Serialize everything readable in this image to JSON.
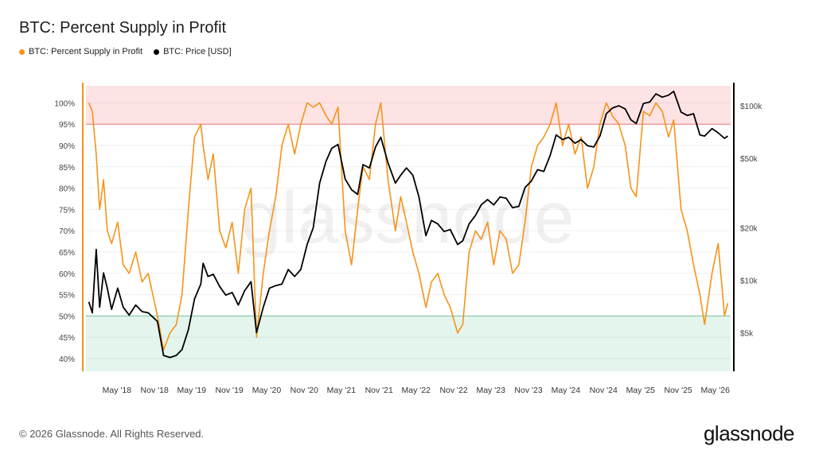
{
  "title": "BTC: Percent Supply in Profit",
  "legend": {
    "items": [
      {
        "label": "BTC: Percent Supply in Profit",
        "color": "#f7931a"
      },
      {
        "label": "BTC: Price [USD]",
        "color": "#000000"
      }
    ]
  },
  "watermark": "glassnode",
  "footer": {
    "copyright": "© 2026 Glassnode. All Rights Reserved.",
    "brand": "glassnode"
  },
  "colors": {
    "profit_series": "#f7931a",
    "price_series": "#000000",
    "upper_band": "#fde3e3",
    "upper_band_line": "#f08080",
    "lower_band": "#e3f5ec",
    "lower_band_line": "#7fcfa6"
  },
  "chart_data": {
    "type": "line",
    "x_ticks": [
      "May '18",
      "Nov '18",
      "May '19",
      "Nov '19",
      "May '20",
      "Nov '20",
      "May '21",
      "Nov '21",
      "May '22",
      "Nov '22",
      "May '23",
      "Nov '23",
      "May '24",
      "Nov '24",
      "May '25",
      "Nov '25",
      "May '26"
    ],
    "x_range": [
      "2017-12-01",
      "2026-07-15"
    ],
    "y_left": {
      "label": "",
      "range": [
        37,
        104
      ],
      "ticks": [
        "40%",
        "45%",
        "50%",
        "55%",
        "60%",
        "65%",
        "70%",
        "75%",
        "80%",
        "85%",
        "90%",
        "95%",
        "100%"
      ]
    },
    "y_right": {
      "label": "",
      "scale": "log",
      "range": [
        3000,
        130000
      ],
      "ticks": [
        "$5k",
        "$10k",
        "$20k",
        "$50k",
        "$100k"
      ]
    },
    "bands": [
      {
        "from": 95,
        "to": 104,
        "color": "#fde3e3"
      },
      {
        "from": 37,
        "to": 50,
        "color": "#e3f5ec"
      }
    ],
    "series": [
      {
        "name": "BTC: Percent Supply in Profit",
        "axis": "left",
        "color": "#f7931a",
        "x": [
          "2017-12-15",
          "2018-01-01",
          "2018-01-20",
          "2018-02-06",
          "2018-02-25",
          "2018-03-15",
          "2018-04-05",
          "2018-05-05",
          "2018-06-01",
          "2018-06-30",
          "2018-08-01",
          "2018-09-01",
          "2018-10-01",
          "2018-11-15",
          "2018-12-15",
          "2019-01-15",
          "2019-02-15",
          "2019-03-15",
          "2019-04-15",
          "2019-05-15",
          "2019-06-15",
          "2019-06-26",
          "2019-07-20",
          "2019-08-15",
          "2019-09-15",
          "2019-10-15",
          "2019-11-15",
          "2019-12-15",
          "2020-01-15",
          "2020-02-15",
          "2020-03-13",
          "2020-04-15",
          "2020-05-15",
          "2020-06-15",
          "2020-07-15",
          "2020-08-15",
          "2020-09-15",
          "2020-10-15",
          "2020-11-15",
          "2020-12-15",
          "2021-01-15",
          "2021-02-15",
          "2021-03-15",
          "2021-04-15",
          "2021-05-20",
          "2021-06-20",
          "2021-07-20",
          "2021-08-15",
          "2021-09-15",
          "2021-10-15",
          "2021-11-10",
          "2021-12-15",
          "2022-01-20",
          "2022-02-15",
          "2022-03-15",
          "2022-04-15",
          "2022-05-15",
          "2022-06-18",
          "2022-07-15",
          "2022-08-15",
          "2022-09-15",
          "2022-10-15",
          "2022-11-20",
          "2022-12-15",
          "2023-01-15",
          "2023-02-15",
          "2023-03-15",
          "2023-04-15",
          "2023-05-15",
          "2023-06-15",
          "2023-07-15",
          "2023-08-15",
          "2023-09-15",
          "2023-10-15",
          "2023-11-15",
          "2023-12-15",
          "2024-01-15",
          "2024-02-15",
          "2024-03-15",
          "2024-04-15",
          "2024-05-15",
          "2024-06-15",
          "2024-07-15",
          "2024-08-15",
          "2024-09-15",
          "2024-10-15",
          "2024-11-15",
          "2024-12-15",
          "2025-01-15",
          "2025-02-15",
          "2025-03-15",
          "2025-04-10",
          "2025-05-15",
          "2025-06-15",
          "2025-07-15",
          "2025-08-15",
          "2025-09-15",
          "2025-10-10",
          "2025-11-15",
          "2025-12-15",
          "2026-01-15",
          "2026-02-15",
          "2026-03-10",
          "2026-04-15",
          "2026-05-15",
          "2026-06-15",
          "2026-07-01"
        ],
        "values": [
          100,
          98,
          88,
          75,
          82,
          70,
          67,
          72,
          62,
          60,
          65,
          58,
          60,
          50,
          42,
          46,
          48,
          55,
          75,
          92,
          95,
          90,
          82,
          88,
          70,
          66,
          72,
          60,
          75,
          80,
          45,
          60,
          70,
          78,
          90,
          95,
          88,
          95,
          100,
          99,
          100,
          97,
          95,
          99,
          70,
          62,
          75,
          85,
          82,
          95,
          100,
          82,
          70,
          78,
          72,
          65,
          60,
          52,
          58,
          60,
          55,
          52,
          46,
          48,
          65,
          70,
          68,
          72,
          62,
          70,
          68,
          60,
          62,
          72,
          85,
          90,
          92,
          95,
          100,
          90,
          95,
          88,
          92,
          80,
          85,
          95,
          100,
          97,
          95,
          90,
          80,
          78,
          98,
          97,
          100,
          98,
          92,
          96,
          75,
          70,
          62,
          55,
          48,
          60,
          67,
          50,
          53
        ]
      },
      {
        "name": "BTC: Price [USD]",
        "axis": "right",
        "color": "#000000",
        "x": [
          "2017-12-15",
          "2018-01-01",
          "2018-01-20",
          "2018-02-06",
          "2018-02-25",
          "2018-03-15",
          "2018-04-05",
          "2018-05-05",
          "2018-06-01",
          "2018-06-30",
          "2018-08-01",
          "2018-09-01",
          "2018-10-01",
          "2018-11-15",
          "2018-12-15",
          "2019-01-15",
          "2019-02-15",
          "2019-03-15",
          "2019-04-15",
          "2019-05-15",
          "2019-06-15",
          "2019-06-26",
          "2019-07-20",
          "2019-08-15",
          "2019-09-15",
          "2019-10-15",
          "2019-11-15",
          "2019-12-15",
          "2020-01-15",
          "2020-02-15",
          "2020-03-13",
          "2020-04-15",
          "2020-05-15",
          "2020-06-15",
          "2020-07-15",
          "2020-08-15",
          "2020-09-15",
          "2020-10-15",
          "2020-11-15",
          "2020-12-15",
          "2021-01-15",
          "2021-02-15",
          "2021-03-15",
          "2021-04-15",
          "2021-05-20",
          "2021-06-20",
          "2021-07-20",
          "2021-08-15",
          "2021-09-15",
          "2021-10-15",
          "2021-11-10",
          "2021-12-15",
          "2022-01-20",
          "2022-02-15",
          "2022-03-15",
          "2022-04-15",
          "2022-05-15",
          "2022-06-18",
          "2022-07-15",
          "2022-08-15",
          "2022-09-15",
          "2022-10-15",
          "2022-11-20",
          "2022-12-15",
          "2023-01-15",
          "2023-02-15",
          "2023-03-15",
          "2023-04-15",
          "2023-05-15",
          "2023-06-15",
          "2023-07-15",
          "2023-08-15",
          "2023-09-15",
          "2023-10-15",
          "2023-11-15",
          "2023-12-15",
          "2024-01-15",
          "2024-02-15",
          "2024-03-15",
          "2024-04-15",
          "2024-05-15",
          "2024-06-15",
          "2024-07-15",
          "2024-08-15",
          "2024-09-15",
          "2024-10-15",
          "2024-11-15",
          "2024-12-15",
          "2025-01-15",
          "2025-02-15",
          "2025-03-15",
          "2025-04-10",
          "2025-05-15",
          "2025-06-15",
          "2025-07-15",
          "2025-08-15",
          "2025-09-15",
          "2025-10-10",
          "2025-11-15",
          "2025-12-15",
          "2026-01-15",
          "2026-02-15",
          "2026-03-10",
          "2026-04-15",
          "2026-05-15",
          "2026-06-15",
          "2026-07-01"
        ],
        "values": [
          7500,
          6500,
          15000,
          7000,
          11000,
          9000,
          6800,
          9000,
          7000,
          6300,
          7200,
          6600,
          6500,
          5800,
          3700,
          3600,
          3700,
          4000,
          5200,
          7800,
          9500,
          12500,
          10500,
          10800,
          9200,
          8200,
          8500,
          7200,
          8700,
          9800,
          5000,
          7000,
          9000,
          9300,
          9500,
          11500,
          10500,
          11500,
          16000,
          20000,
          36000,
          48000,
          57000,
          60000,
          38000,
          33000,
          31000,
          46000,
          44000,
          58000,
          66000,
          47000,
          36000,
          40000,
          44000,
          40000,
          30000,
          18000,
          22000,
          21000,
          19000,
          19500,
          16000,
          16800,
          21000,
          23500,
          27000,
          29000,
          27000,
          30000,
          29500,
          26000,
          26500,
          34000,
          37000,
          43000,
          42000,
          52000,
          68000,
          64000,
          66000,
          61000,
          64000,
          59000,
          58000,
          67000,
          90000,
          97000,
          100000,
          96000,
          83000,
          79000,
          103000,
          105000,
          117000,
          112000,
          115000,
          121000,
          92000,
          88000,
          90000,
          68000,
          67000,
          74000,
          70000,
          65000,
          67000
        ]
      }
    ]
  }
}
